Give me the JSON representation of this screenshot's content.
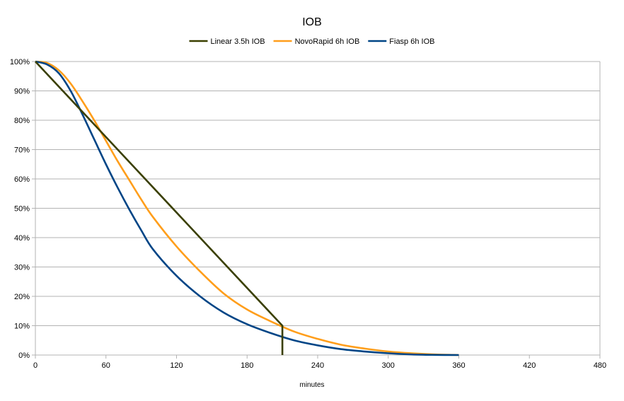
{
  "chart_data": {
    "type": "line",
    "title": "IOB",
    "xlabel": "minutes",
    "ylabel": "",
    "xlim": [
      0,
      480
    ],
    "ylim": [
      0,
      100
    ],
    "x_ticks": [
      0,
      60,
      120,
      180,
      240,
      300,
      360,
      420,
      480
    ],
    "y_ticks": [
      0,
      10,
      20,
      30,
      40,
      50,
      60,
      70,
      80,
      90,
      100
    ],
    "y_tick_labels": [
      "0%",
      "10%",
      "20%",
      "30%",
      "40%",
      "50%",
      "60%",
      "70%",
      "80%",
      "90%",
      "100%"
    ],
    "grid": "horizontal",
    "legend_position": "top",
    "series": [
      {
        "name": "Linear 3.5h IOB",
        "color": "#3a3f00",
        "points": [
          [
            0,
            100
          ],
          [
            210,
            10
          ],
          [
            210,
            0
          ]
        ]
      },
      {
        "name": "NovoRapid 6h IOB",
        "color": "#ff9e1b",
        "points": [
          [
            0,
            100
          ],
          [
            10,
            99.5
          ],
          [
            20,
            97
          ],
          [
            30,
            92.5
          ],
          [
            40,
            86.5
          ],
          [
            50,
            80
          ],
          [
            60,
            73
          ],
          [
            70,
            66
          ],
          [
            80,
            59.5
          ],
          [
            90,
            53
          ],
          [
            100,
            47
          ],
          [
            120,
            37
          ],
          [
            140,
            28.5
          ],
          [
            160,
            21
          ],
          [
            180,
            15.5
          ],
          [
            200,
            11.5
          ],
          [
            220,
            8
          ],
          [
            240,
            5.5
          ],
          [
            260,
            3.5
          ],
          [
            280,
            2.2
          ],
          [
            300,
            1.2
          ],
          [
            320,
            0.6
          ],
          [
            340,
            0.2
          ],
          [
            360,
            0
          ]
        ]
      },
      {
        "name": "Fiasp 6h IOB",
        "color": "#004586",
        "points": [
          [
            0,
            100
          ],
          [
            10,
            99
          ],
          [
            20,
            96
          ],
          [
            30,
            90
          ],
          [
            40,
            82
          ],
          [
            50,
            73.5
          ],
          [
            60,
            65
          ],
          [
            70,
            57
          ],
          [
            80,
            49.5
          ],
          [
            90,
            42.5
          ],
          [
            100,
            36
          ],
          [
            120,
            27
          ],
          [
            140,
            20
          ],
          [
            160,
            14.5
          ],
          [
            180,
            10.5
          ],
          [
            200,
            7.5
          ],
          [
            220,
            5
          ],
          [
            240,
            3.3
          ],
          [
            260,
            2
          ],
          [
            280,
            1.2
          ],
          [
            300,
            0.6
          ],
          [
            320,
            0.2
          ],
          [
            340,
            0.05
          ],
          [
            360,
            0
          ]
        ]
      }
    ]
  }
}
